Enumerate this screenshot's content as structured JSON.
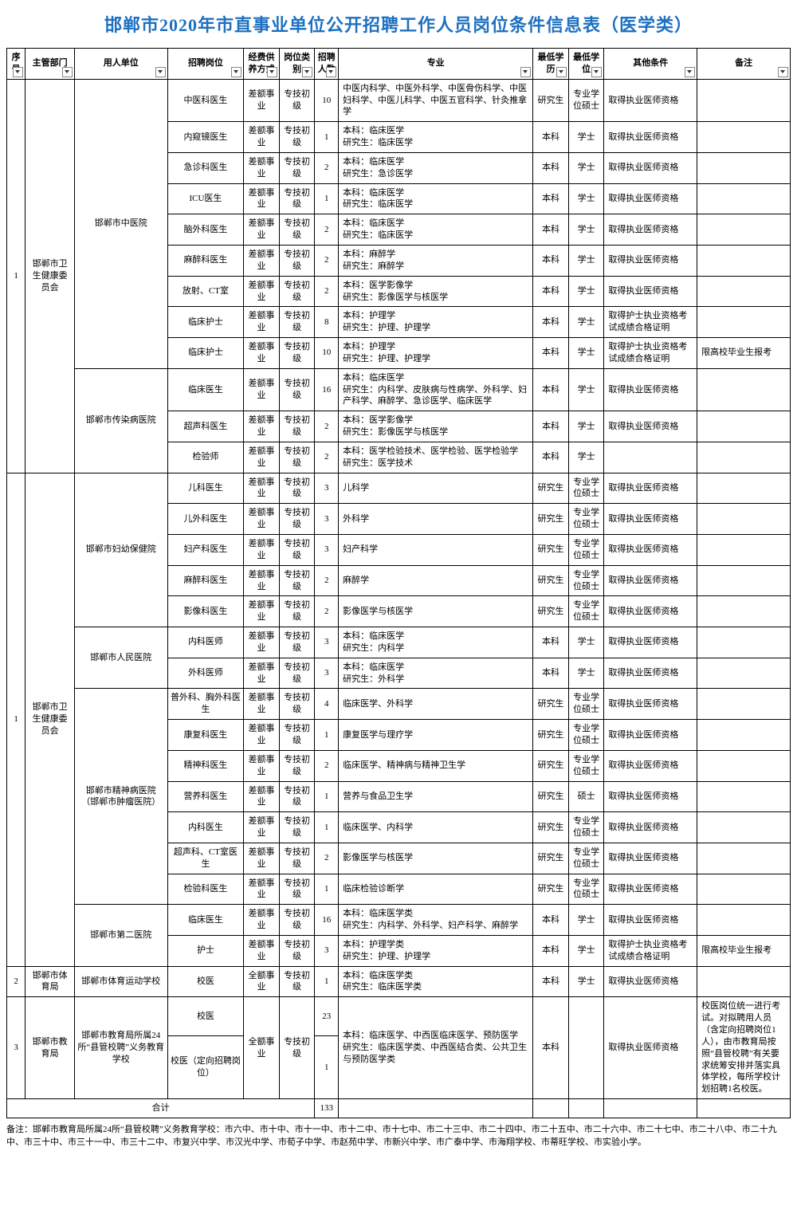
{
  "title": "邯郸市2020年市直事业单位公开招聘工作人员岗位条件信息表（医学类）",
  "headers": [
    "序号",
    "主管部门",
    "用人单位",
    "招聘岗位",
    "经费供养方式",
    "岗位类别",
    "招聘人数",
    "专业",
    "最低学历",
    "最低学位",
    "其他条件",
    "备注"
  ],
  "totalLabel": "合计",
  "totalNum": "133",
  "footnote": "备注：邯郸市教育局所属24所“县管校聘”义务教育学校：市六中、市十中、市十一中、市十二中、市十七中、市二十三中、市二十四中、市二十五中、市二十六中、市二十七中、市二十八中、市二十九中、市三十中、市三十一中、市三十二中、市复兴中学、市汉光中学、市荀子中学、市赵苑中学、市新兴中学、市广泰中学、市海翔学校、市蒂旺学校、市实验小学。",
  "groups": [
    {
      "seq": "1",
      "dept": "邯郸市卫生健康委员会",
      "units": [
        {
          "unit": "邯郸市中医院",
          "rows": [
            {
              "pos": "中医科医生",
              "fund": "差额事业",
              "cat": "专技初级",
              "num": "10",
              "major": "中医内科学、中医外科学、中医骨伤科学、中医妇科学、中医儿科学、中医五官科学、针灸推拿学",
              "edu": "研究生",
              "deg": "专业学位硕士",
              "other": "取得执业医师资格",
              "note": ""
            },
            {
              "pos": "内窥镜医生",
              "fund": "差额事业",
              "cat": "专技初级",
              "num": "1",
              "major": "本科：临床医学\n研究生：临床医学",
              "edu": "本科",
              "deg": "学士",
              "other": "取得执业医师资格",
              "note": ""
            },
            {
              "pos": "急诊科医生",
              "fund": "差额事业",
              "cat": "专技初级",
              "num": "2",
              "major": "本科：临床医学\n研究生：急诊医学",
              "edu": "本科",
              "deg": "学士",
              "other": "取得执业医师资格",
              "note": ""
            },
            {
              "pos": "ICU医生",
              "fund": "差额事业",
              "cat": "专技初级",
              "num": "1",
              "major": "本科：临床医学\n研究生：临床医学",
              "edu": "本科",
              "deg": "学士",
              "other": "取得执业医师资格",
              "note": ""
            },
            {
              "pos": "脑外科医生",
              "fund": "差额事业",
              "cat": "专技初级",
              "num": "2",
              "major": "本科：临床医学\n研究生：临床医学",
              "edu": "本科",
              "deg": "学士",
              "other": "取得执业医师资格",
              "note": ""
            },
            {
              "pos": "麻醉科医生",
              "fund": "差额事业",
              "cat": "专技初级",
              "num": "2",
              "major": "本科：麻醉学\n研究生：麻醉学",
              "edu": "本科",
              "deg": "学士",
              "other": "取得执业医师资格",
              "note": ""
            },
            {
              "pos": "放射、CT室",
              "fund": "差额事业",
              "cat": "专技初级",
              "num": "2",
              "major": "本科：医学影像学\n研究生：影像医学与核医学",
              "edu": "本科",
              "deg": "学士",
              "other": "取得执业医师资格",
              "note": ""
            },
            {
              "pos": "临床护士",
              "fund": "差额事业",
              "cat": "专技初级",
              "num": "8",
              "major": "本科：护理学\n研究生：护理、护理学",
              "edu": "本科",
              "deg": "学士",
              "other": "取得护士执业资格考试成绩合格证明",
              "note": ""
            },
            {
              "pos": "临床护士",
              "fund": "差额事业",
              "cat": "专技初级",
              "num": "10",
              "major": "本科：护理学\n研究生：护理、护理学",
              "edu": "本科",
              "deg": "学士",
              "other": "取得护士执业资格考试成绩合格证明",
              "note": "限高校毕业生报考"
            }
          ]
        },
        {
          "unit": "邯郸市传染病医院",
          "rows": [
            {
              "pos": "临床医生",
              "fund": "差额事业",
              "cat": "专技初级",
              "num": "16",
              "major": "本科：临床医学\n研究生：内科学、皮肤病与性病学、外科学、妇产科学、麻醉学、急诊医学、临床医学",
              "edu": "本科",
              "deg": "学士",
              "other": "取得执业医师资格",
              "note": ""
            },
            {
              "pos": "超声科医生",
              "fund": "差额事业",
              "cat": "专技初级",
              "num": "2",
              "major": "本科：医学影像学\n研究生：影像医学与核医学",
              "edu": "本科",
              "deg": "学士",
              "other": "取得执业医师资格",
              "note": ""
            },
            {
              "pos": "检验师",
              "fund": "差额事业",
              "cat": "专技初级",
              "num": "2",
              "major": "本科：医学检验技术、医学检验、医学检验学\n研究生：医学技术",
              "edu": "本科",
              "deg": "学士",
              "other": "",
              "note": ""
            }
          ]
        }
      ]
    },
    {
      "seq": "1",
      "dept": "邯郸市卫生健康委员会",
      "units": [
        {
          "unit": "邯郸市妇幼保健院",
          "rows": [
            {
              "pos": "儿科医生",
              "fund": "差额事业",
              "cat": "专技初级",
              "num": "3",
              "major": "儿科学",
              "edu": "研究生",
              "deg": "专业学位硕士",
              "other": "取得执业医师资格",
              "note": ""
            },
            {
              "pos": "儿外科医生",
              "fund": "差额事业",
              "cat": "专技初级",
              "num": "3",
              "major": "外科学",
              "edu": "研究生",
              "deg": "专业学位硕士",
              "other": "取得执业医师资格",
              "note": ""
            },
            {
              "pos": "妇产科医生",
              "fund": "差额事业",
              "cat": "专技初级",
              "num": "3",
              "major": "妇产科学",
              "edu": "研究生",
              "deg": "专业学位硕士",
              "other": "取得执业医师资格",
              "note": ""
            },
            {
              "pos": "麻醉科医生",
              "fund": "差额事业",
              "cat": "专技初级",
              "num": "2",
              "major": "麻醉学",
              "edu": "研究生",
              "deg": "专业学位硕士",
              "other": "取得执业医师资格",
              "note": ""
            },
            {
              "pos": "影像科医生",
              "fund": "差额事业",
              "cat": "专技初级",
              "num": "2",
              "major": "影像医学与核医学",
              "edu": "研究生",
              "deg": "专业学位硕士",
              "other": "取得执业医师资格",
              "note": ""
            }
          ]
        },
        {
          "unit": "邯郸市人民医院",
          "rows": [
            {
              "pos": "内科医师",
              "fund": "差额事业",
              "cat": "专技初级",
              "num": "3",
              "major": "本科：临床医学\n研究生：内科学",
              "edu": "本科",
              "deg": "学士",
              "other": "取得执业医师资格",
              "note": ""
            },
            {
              "pos": "外科医师",
              "fund": "差额事业",
              "cat": "专技初级",
              "num": "3",
              "major": "本科：临床医学\n研究生：外科学",
              "edu": "本科",
              "deg": "学士",
              "other": "取得执业医师资格",
              "note": ""
            }
          ]
        },
        {
          "unit": "邯郸市精神病医院（邯郸市肿瘤医院）",
          "rows": [
            {
              "pos": "普外科、胸外科医生",
              "fund": "差额事业",
              "cat": "专技初级",
              "num": "4",
              "major": "临床医学、外科学",
              "edu": "研究生",
              "deg": "专业学位硕士",
              "other": "取得执业医师资格",
              "note": ""
            },
            {
              "pos": "康复科医生",
              "fund": "差额事业",
              "cat": "专技初级",
              "num": "1",
              "major": "康复医学与理疗学",
              "edu": "研究生",
              "deg": "专业学位硕士",
              "other": "取得执业医师资格",
              "note": ""
            },
            {
              "pos": "精神科医生",
              "fund": "差额事业",
              "cat": "专技初级",
              "num": "2",
              "major": "临床医学、精神病与精神卫生学",
              "edu": "研究生",
              "deg": "专业学位硕士",
              "other": "取得执业医师资格",
              "note": ""
            },
            {
              "pos": "营养科医生",
              "fund": "差额事业",
              "cat": "专技初级",
              "num": "1",
              "major": "营养与食品卫生学",
              "edu": "研究生",
              "deg": "硕士",
              "other": "取得执业医师资格",
              "note": ""
            },
            {
              "pos": "内科医生",
              "fund": "差额事业",
              "cat": "专技初级",
              "num": "1",
              "major": "临床医学、内科学",
              "edu": "研究生",
              "deg": "专业学位硕士",
              "other": "取得执业医师资格",
              "note": ""
            },
            {
              "pos": "超声科、CT室医生",
              "fund": "差额事业",
              "cat": "专技初级",
              "num": "2",
              "major": "影像医学与核医学",
              "edu": "研究生",
              "deg": "专业学位硕士",
              "other": "取得执业医师资格",
              "note": ""
            },
            {
              "pos": "检验科医生",
              "fund": "差额事业",
              "cat": "专技初级",
              "num": "1",
              "major": "临床检验诊断学",
              "edu": "研究生",
              "deg": "专业学位硕士",
              "other": "取得执业医师资格",
              "note": ""
            }
          ]
        },
        {
          "unit": "邯郸市第二医院",
          "rows": [
            {
              "pos": "临床医生",
              "fund": "差额事业",
              "cat": "专技初级",
              "num": "16",
              "major": "本科：临床医学类\n研究生：内科学、外科学、妇产科学、麻醉学",
              "edu": "本科",
              "deg": "学士",
              "other": "取得执业医师资格",
              "note": ""
            },
            {
              "pos": "护士",
              "fund": "差额事业",
              "cat": "专技初级",
              "num": "3",
              "major": "本科：护理学类\n研究生：护理、护理学",
              "edu": "本科",
              "deg": "学士",
              "other": "取得护士执业资格考试成绩合格证明",
              "note": "限高校毕业生报考"
            }
          ]
        }
      ]
    },
    {
      "seq": "2",
      "dept": "邯郸市体育局",
      "units": [
        {
          "unit": "邯郸市体育运动学校",
          "rows": [
            {
              "pos": "校医",
              "fund": "全额事业",
              "cat": "专技初级",
              "num": "1",
              "major": "本科：临床医学类\n研究生：临床医学类",
              "edu": "本科",
              "deg": "学士",
              "other": "取得执业医师资格",
              "note": ""
            }
          ]
        }
      ]
    }
  ],
  "eduGroup": {
    "seq": "3",
    "dept": "邯郸市教育局",
    "unit": "邯郸市教育局所属24所“县管校聘”义务教育学校",
    "fund": "全额事业",
    "cat": "专技初级",
    "major": "本科：临床医学、中西医临床医学、预防医学\n研究生：临床医学类、中西医结合类、公共卫生与预防医学类",
    "edu": "本科",
    "deg": "",
    "other": "取得执业医师资格",
    "note": "校医岗位统一进行考试。对拟聘用人员（含定向招聘岗位1人），由市教育局按照“县管校聘”有关要求统筹安排并落实具体学校，每所学校计划招聘1名校医。",
    "rows": [
      {
        "pos": "校医",
        "num": "23"
      },
      {
        "pos": "校医（定向招聘岗位）",
        "num": "1"
      }
    ]
  }
}
